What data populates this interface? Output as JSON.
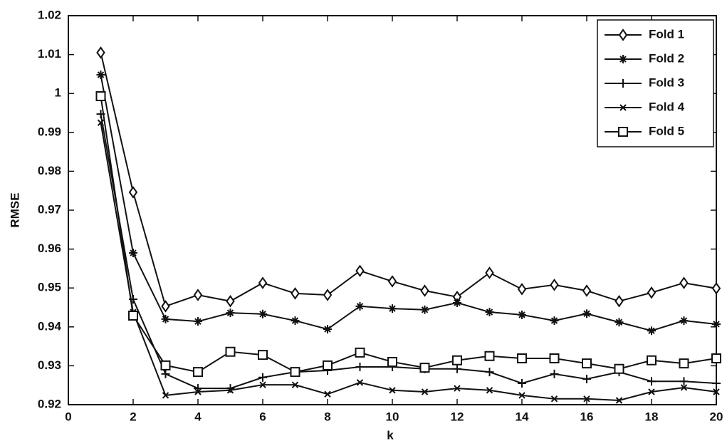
{
  "chart_data": {
    "type": "line",
    "x_label": "k",
    "y_label": "RMSE",
    "x": [
      1,
      2,
      3,
      4,
      5,
      6,
      7,
      8,
      9,
      10,
      11,
      12,
      13,
      14,
      15,
      16,
      17,
      18,
      19,
      20
    ],
    "series": [
      {
        "name": "Fold 1",
        "color": "#111111",
        "marker": "diamond",
        "values": [
          1.0105,
          0.9746,
          0.9453,
          0.9482,
          0.9466,
          0.9513,
          0.9486,
          0.9482,
          0.9544,
          0.9517,
          0.9493,
          0.9477,
          0.9539,
          0.9497,
          0.9508,
          0.9493,
          0.9466,
          0.9488,
          0.9513,
          0.9499
        ]
      },
      {
        "name": "Fold 2",
        "color": "#111111",
        "marker": "star",
        "values": [
          1.0048,
          0.959,
          0.942,
          0.9414,
          0.9436,
          0.9433,
          0.9416,
          0.9394,
          0.9453,
          0.9447,
          0.9444,
          0.9462,
          0.9438,
          0.9431,
          0.9416,
          0.9434,
          0.9412,
          0.939,
          0.9416,
          0.9407
        ]
      },
      {
        "name": "Fold 3",
        "color": "#111111",
        "marker": "plus",
        "values": [
          0.9947,
          0.9471,
          0.9279,
          0.9242,
          0.9242,
          0.927,
          0.9284,
          0.9288,
          0.9297,
          0.9297,
          0.9292,
          0.9292,
          0.9284,
          0.9255,
          0.9279,
          0.9266,
          0.9284,
          0.926,
          0.926,
          0.9255
        ]
      },
      {
        "name": "Fold 4",
        "color": "#111111",
        "marker": "x",
        "values": [
          0.9925,
          0.9438,
          0.9224,
          0.9233,
          0.9237,
          0.9251,
          0.9251,
          0.9227,
          0.9257,
          0.9237,
          0.9233,
          0.9242,
          0.9237,
          0.9224,
          0.9215,
          0.9215,
          0.9211,
          0.9233,
          0.9244,
          0.9233
        ]
      },
      {
        "name": "Fold 5",
        "color": "#111111",
        "marker": "square",
        "values": [
          0.9993,
          0.9429,
          0.9301,
          0.9284,
          0.9336,
          0.9328,
          0.9284,
          0.9301,
          0.9334,
          0.931,
          0.9295,
          0.9314,
          0.9325,
          0.9319,
          0.9319,
          0.9306,
          0.9292,
          0.9314,
          0.9306,
          0.9319
        ]
      }
    ],
    "xlim": [
      0,
      20
    ],
    "xticks": [
      0,
      2,
      4,
      6,
      8,
      10,
      12,
      14,
      16,
      18,
      20
    ],
    "ylim": [
      0.92,
      1.02
    ],
    "yticks": [
      0.92,
      0.93,
      0.94,
      0.95,
      0.96,
      0.97,
      0.98,
      0.99,
      1,
      1.01,
      1.02
    ],
    "grid": false,
    "legend": "upper right"
  }
}
